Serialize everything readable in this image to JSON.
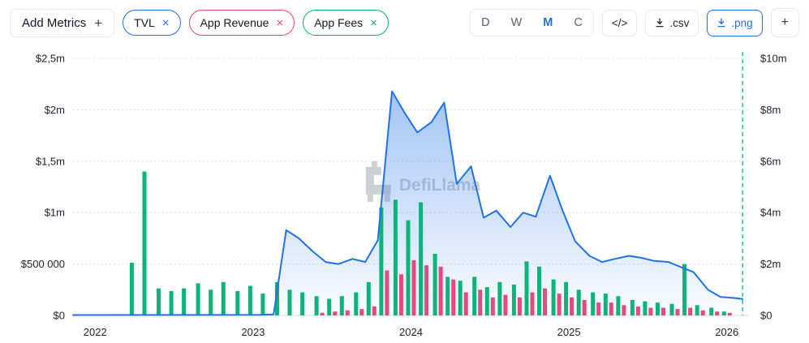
{
  "toolbar": {
    "add_metrics_label": "Add Metrics",
    "add_metrics_plus": "+",
    "remove_glyph": "×",
    "metrics": [
      {
        "label": "TVL",
        "color": "#2172e5"
      },
      {
        "label": "App Revenue",
        "color": "#e8487f"
      },
      {
        "label": "App Fees",
        "color": "#0bb579"
      }
    ],
    "intervals": [
      {
        "label": "D",
        "active": false
      },
      {
        "label": "W",
        "active": false
      },
      {
        "label": "M",
        "active": true
      },
      {
        "label": "C",
        "active": false
      }
    ],
    "embed_label": "</>",
    "csv_label": ".csv",
    "png_label": ".png",
    "add_chart_label": "+"
  },
  "watermark": "DefiLlama",
  "chart_data": {
    "type": "mixed",
    "x_range": [
      2021.86,
      2026.14
    ],
    "marker_x": 2026.1,
    "marker_color": "#1ec490",
    "x_ticks": [
      "2022",
      "2023",
      "2024",
      "2025",
      "2026"
    ],
    "x_tick_values": [
      2022,
      2023,
      2024,
      2025,
      2026
    ],
    "left_axis": {
      "max": 2500000,
      "tick_values": [
        0,
        500000,
        1000000,
        1500000,
        2000000,
        2500000
      ],
      "tick_labels": [
        "$0",
        "$500 000",
        "$1m",
        "$1,5m",
        "$2m",
        "$2,5m"
      ]
    },
    "right_axis": {
      "max": 10000000,
      "tick_values": [
        0,
        2000000,
        4000000,
        6000000,
        8000000,
        10000000
      ],
      "tick_labels": [
        "$0",
        "$2m",
        "$4m",
        "$6m",
        "$8m",
        "$10m"
      ]
    },
    "series": [
      {
        "name": "TVL",
        "type": "area",
        "axis": "left",
        "color": "#2172e5",
        "x": [
          2021.86,
          2022.5,
          2023.04,
          2023.13,
          2023.21,
          2023.29,
          2023.38,
          2023.46,
          2023.54,
          2023.63,
          2023.71,
          2023.79,
          2023.88,
          2023.96,
          2024.04,
          2024.13,
          2024.21,
          2024.29,
          2024.38,
          2024.46,
          2024.54,
          2024.63,
          2024.71,
          2024.79,
          2024.88,
          2024.96,
          2025.04,
          2025.13,
          2025.21,
          2025.29,
          2025.38,
          2025.46,
          2025.54,
          2025.63,
          2025.71,
          2025.79,
          2025.88,
          2025.96,
          2026.04,
          2026.1
        ],
        "values": [
          4000,
          5000,
          6000,
          10000,
          830000,
          750000,
          620000,
          520000,
          500000,
          550000,
          520000,
          730000,
          2180000,
          1970000,
          1780000,
          1880000,
          2070000,
          1280000,
          1450000,
          950000,
          1020000,
          860000,
          1000000,
          960000,
          1360000,
          1020000,
          720000,
          580000,
          520000,
          550000,
          580000,
          560000,
          530000,
          520000,
          470000,
          420000,
          250000,
          180000,
          170000,
          160000
        ]
      },
      {
        "name": "App Fees",
        "type": "bar",
        "axis": "right",
        "color": "#0bb579",
        "x": [
          2022.25,
          2022.33,
          2022.42,
          2022.5,
          2022.58,
          2022.67,
          2022.75,
          2022.83,
          2022.92,
          2023.0,
          2023.08,
          2023.17,
          2023.25,
          2023.33,
          2023.42,
          2023.5,
          2023.58,
          2023.67,
          2023.75,
          2023.83,
          2023.92,
          2024.0,
          2024.08,
          2024.17,
          2024.25,
          2024.33,
          2024.42,
          2024.5,
          2024.58,
          2024.67,
          2024.75,
          2024.83,
          2024.92,
          2025.0,
          2025.08,
          2025.17,
          2025.25,
          2025.33,
          2025.42,
          2025.5,
          2025.58,
          2025.67,
          2025.75,
          2025.83,
          2025.92,
          2026.0
        ],
        "values": [
          2050000,
          5600000,
          1050000,
          950000,
          1050000,
          1250000,
          1000000,
          1300000,
          950000,
          1150000,
          850000,
          1300000,
          1000000,
          900000,
          750000,
          650000,
          750000,
          900000,
          1300000,
          4200000,
          4500000,
          3700000,
          4400000,
          2400000,
          1500000,
          1350000,
          1500000,
          1100000,
          1300000,
          1200000,
          2100000,
          1900000,
          1400000,
          1300000,
          1000000,
          900000,
          850000,
          750000,
          600000,
          550000,
          500000,
          450000,
          2000000,
          400000,
          300000,
          150000
        ]
      },
      {
        "name": "App Revenue",
        "type": "bar",
        "axis": "right",
        "color": "#e8487f",
        "x": [
          2023.42,
          2023.5,
          2023.58,
          2023.67,
          2023.75,
          2023.83,
          2023.92,
          2024.0,
          2024.08,
          2024.17,
          2024.25,
          2024.33,
          2024.42,
          2024.5,
          2024.58,
          2024.67,
          2024.75,
          2024.83,
          2024.92,
          2025.0,
          2025.08,
          2025.17,
          2025.25,
          2025.33,
          2025.42,
          2025.5,
          2025.58,
          2025.67,
          2025.75,
          2025.83,
          2025.92,
          2026.0
        ],
        "values": [
          100000,
          150000,
          200000,
          250000,
          350000,
          1750000,
          1600000,
          2150000,
          1950000,
          1900000,
          1400000,
          900000,
          1000000,
          700000,
          800000,
          700000,
          900000,
          1050000,
          850000,
          700000,
          600000,
          500000,
          500000,
          400000,
          350000,
          300000,
          300000,
          250000,
          300000,
          200000,
          150000,
          100000
        ]
      }
    ]
  }
}
